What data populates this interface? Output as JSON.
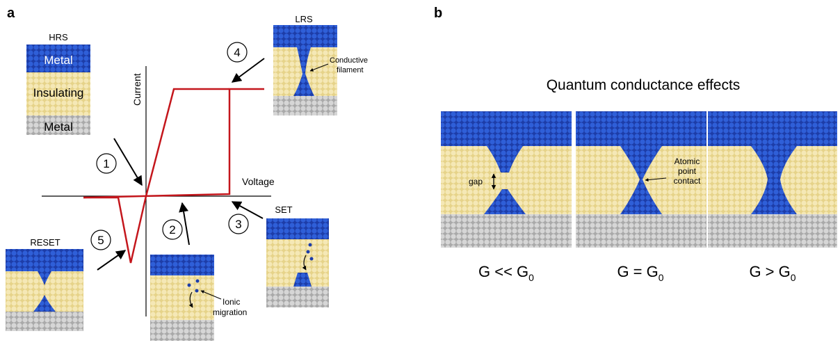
{
  "panel_a": {
    "letter": "a",
    "axes": {
      "x_label": "Voltage",
      "y_label": "Current"
    },
    "steps": [
      {
        "num": "1"
      },
      {
        "num": "2"
      },
      {
        "num": "3"
      },
      {
        "num": "4"
      },
      {
        "num": "5"
      }
    ],
    "states": {
      "hrs": {
        "title": "HRS",
        "top_layer": "Metal",
        "middle_layer": "Insulating",
        "bottom_layer": "Metal"
      },
      "lrs": {
        "title": "LRS",
        "annotation": [
          "Conductive",
          "filament"
        ]
      },
      "set": {
        "title": "SET"
      },
      "reset": {
        "title": "RESET"
      },
      "ionic": {
        "annotation": [
          "Ionic",
          "migration"
        ]
      }
    },
    "colors": {
      "curve": "#c4161c",
      "metal": "#1a3fb0",
      "insulator": "#f1e2a7",
      "substrate": "#c8c8c8"
    }
  },
  "panel_b": {
    "letter": "b",
    "title": "Quantum conductance effects",
    "gap_label": "gap",
    "contact_label": [
      "Atomic",
      "point",
      "contact"
    ],
    "captions": [
      {
        "base": "G << G",
        "sub": "0"
      },
      {
        "base": "G = G",
        "sub": "0"
      },
      {
        "base": "G > G",
        "sub": "0"
      }
    ]
  }
}
